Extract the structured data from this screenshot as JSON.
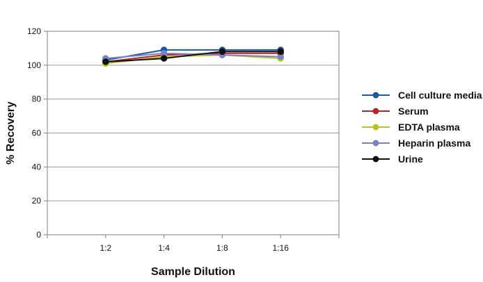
{
  "chart_data": {
    "type": "line",
    "title": "",
    "xlabel": "Sample Dilution",
    "ylabel": "% Recovery",
    "categories": [
      "1:2",
      "1:4",
      "1:8",
      "1:16"
    ],
    "ylim": [
      0,
      120
    ],
    "yticks": [
      0,
      20,
      40,
      60,
      80,
      100,
      120
    ],
    "grid": "horizontal",
    "legend_position": "right",
    "series": [
      {
        "name": "Cell culture media",
        "color": "#1a57a0",
        "values": [
          103,
          109,
          109,
          109
        ]
      },
      {
        "name": "Serum",
        "color": "#b82323",
        "values": [
          102,
          106,
          107,
          107
        ]
      },
      {
        "name": "EDTA plasma",
        "color": "#b8c41c",
        "values": [
          101,
          105,
          106,
          104
        ]
      },
      {
        "name": "Heparin plasma",
        "color": "#7b82c9",
        "values": [
          104,
          107,
          106,
          105
        ]
      },
      {
        "name": "Urine",
        "color": "#111111",
        "values": [
          102,
          104,
          108,
          108
        ]
      }
    ]
  }
}
